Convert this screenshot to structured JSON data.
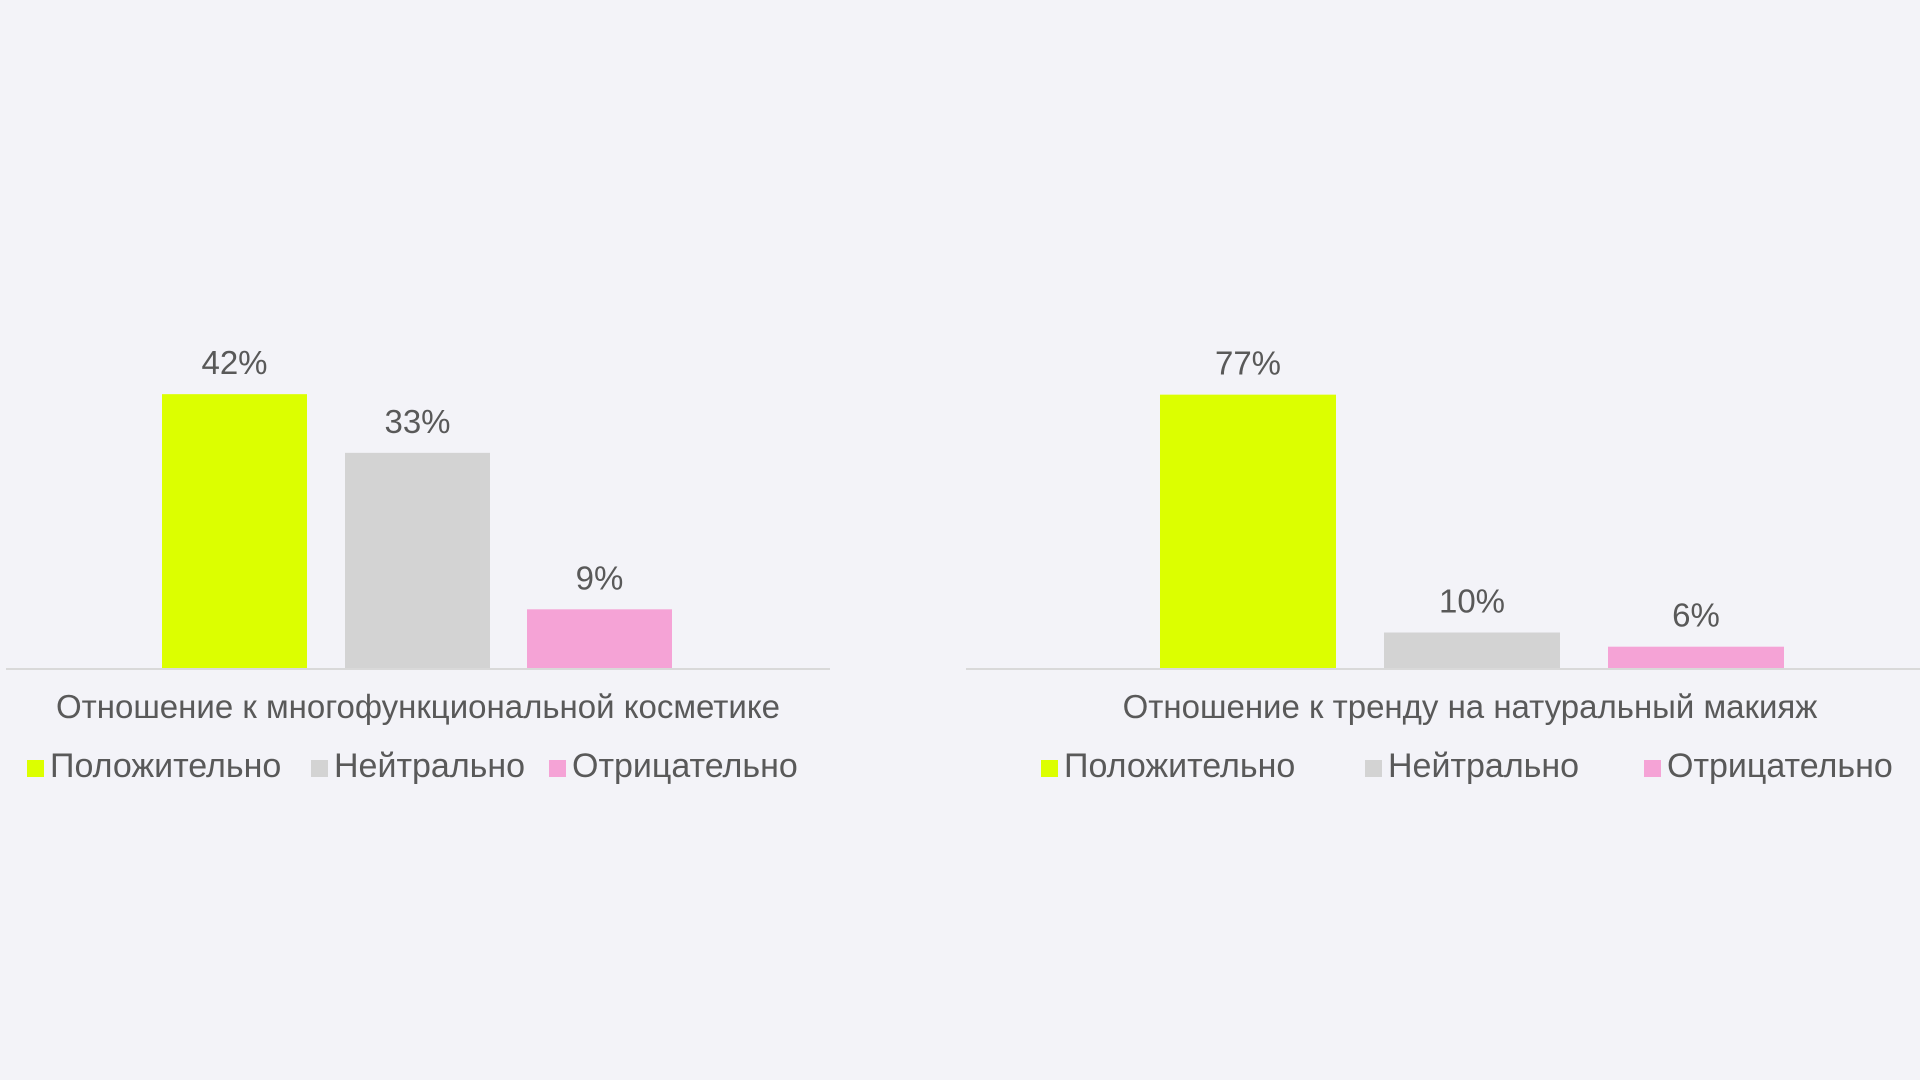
{
  "chart_data": [
    {
      "type": "bar",
      "categories": [
        "Отношение к многофункциональной косметике"
      ],
      "series": [
        {
          "name": "Положительно",
          "values": [
            42
          ],
          "color": "#dcff00"
        },
        {
          "name": "Нейтрально",
          "values": [
            33
          ],
          "color": "#d3d3d3"
        },
        {
          "name": "Отрицательно",
          "values": [
            9
          ],
          "color": "#f5a3d6"
        }
      ],
      "value_suffix": "%",
      "ylim": [
        0,
        50
      ],
      "grid": false,
      "legend": "bottom"
    },
    {
      "type": "bar",
      "categories": [
        "Отношение к тренду на натуральный макияж"
      ],
      "series": [
        {
          "name": "Положительно",
          "values": [
            77
          ],
          "color": "#dcff00"
        },
        {
          "name": "Нейтрально",
          "values": [
            10
          ],
          "color": "#d3d3d3"
        },
        {
          "name": "Отрицательно",
          "values": [
            6
          ],
          "color": "#f5a3d6"
        }
      ],
      "value_suffix": "%",
      "ylim": [
        0,
        90
      ],
      "grid": false,
      "legend": "bottom"
    }
  ]
}
